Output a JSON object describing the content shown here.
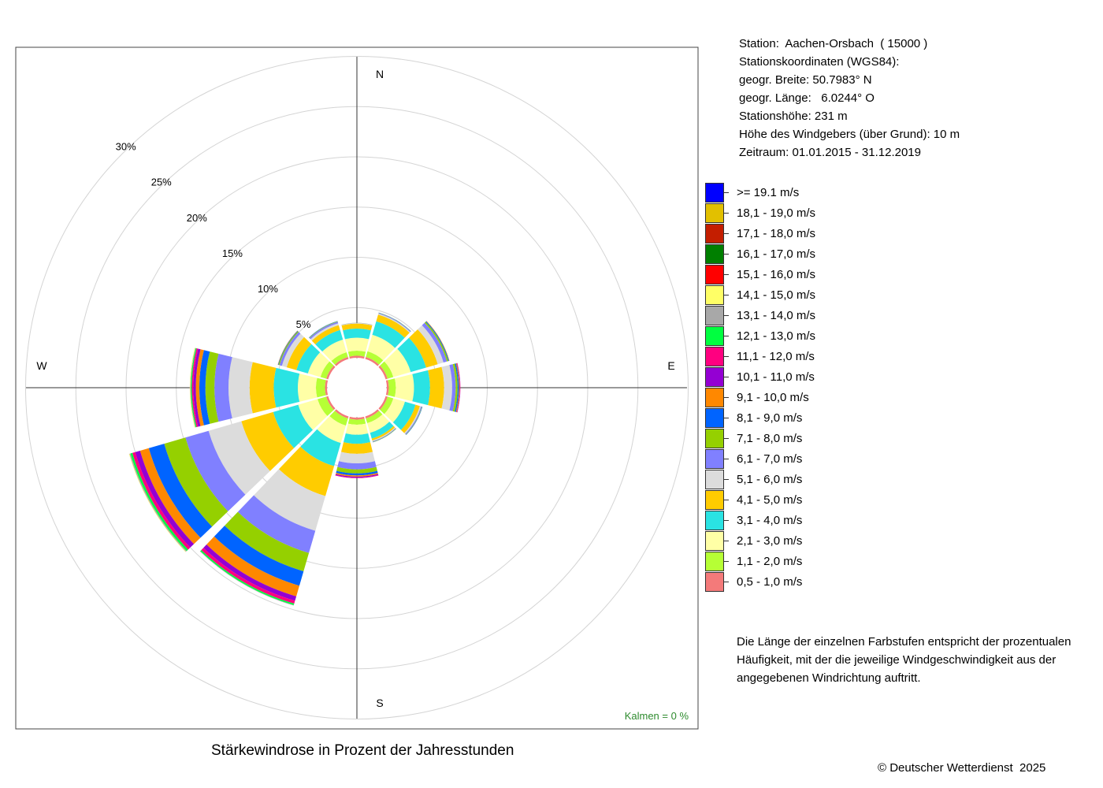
{
  "info": {
    "station": "Station:  Aachen-Orsbach  ( 15000 )",
    "coords_title": "Stationskoordinaten (WGS84):",
    "lat": "geogr. Breite: 50.7983° N",
    "lon": "geogr. Länge:   6.0244° O",
    "height": "Stationshöhe: 231 m",
    "sensor": "Höhe des Windgebers (über Grund): 10 m",
    "period": "Zeitraum: 01.01.2015 - 31.12.2019"
  },
  "calm": "Kalmen  =  0 %",
  "caption": "Stärkewindrose in Prozent der Jahresstunden",
  "note": [
    "Die Länge der einzelnen Farbstufen entspricht der prozentualen",
    "Häufigkeit, mit der die jeweilige Windgeschwindigkeit aus der",
    "angegebenen Windrichtung auftritt."
  ],
  "copyright": "© Deutscher Wetterdienst  2025",
  "chart_data": {
    "type": "wind-rose",
    "title": "Stärkewindrose in Prozent der Jahresstunden",
    "radial_unit": "%",
    "radial_ticks": [
      5,
      10,
      15,
      20,
      25,
      30
    ],
    "radial_tick_labels": [
      "5%",
      "10%",
      "15%",
      "20%",
      "25%",
      "30%"
    ],
    "rmax": 30,
    "compass_labels": [
      "N",
      "E",
      "S",
      "W"
    ],
    "calm_percent": 0,
    "directions_deg": [
      0,
      30,
      60,
      90,
      120,
      150,
      180,
      210,
      240,
      270,
      300,
      330
    ],
    "speed_classes": [
      {
        "label": "0,5 - 1,0 m/s",
        "color": "#f47a7a"
      },
      {
        "label": "1,1 - 2,0 m/s",
        "color": "#b6ff35"
      },
      {
        "label": "2,1 - 3,0 m/s",
        "color": "#ffffa6"
      },
      {
        "label": "3,1 - 4,0 m/s",
        "color": "#2ae3e3"
      },
      {
        "label": "4,1 - 5,0 m/s",
        "color": "#ffcc00"
      },
      {
        "label": "5,1 - 6,0 m/s",
        "color": "#dcdcdc"
      },
      {
        "label": "6,1 - 7,0 m/s",
        "color": "#8080ff"
      },
      {
        "label": "7,1 - 8,0 m/s",
        "color": "#95d000"
      },
      {
        "label": "8,1 - 9,0 m/s",
        "color": "#0064ff"
      },
      {
        "label": "9,1 - 10,0 m/s",
        "color": "#ff8800"
      },
      {
        "label": "10,1 - 11,0 m/s",
        "color": "#9400d3"
      },
      {
        "label": "11,1 - 12,0 m/s",
        "color": "#ff0080"
      },
      {
        "label": "12,1 - 13,0 m/s",
        "color": "#00ff40"
      },
      {
        "label": "13,1 - 14,0 m/s",
        "color": "#a8a8a8"
      },
      {
        "label": "14,1 - 15,0 m/s",
        "color": "#ffff66"
      },
      {
        "label": "15,1 - 16,0 m/s",
        "color": "#ff0000"
      },
      {
        "label": "16,1 - 17,0 m/s",
        "color": "#007f00"
      },
      {
        "label": "17,1 - 18,0 m/s",
        "color": "#c41e00"
      },
      {
        "label": "18,1 - 19,0 m/s",
        "color": "#e2c000"
      },
      {
        "label": ">= 19.1 m/s",
        "color": "#0000ff"
      }
    ],
    "series": [
      {
        "dir": 0,
        "values": [
          0.2,
          0.5,
          1.3,
          0.9,
          0.5,
          0.05,
          0.02,
          0.01
        ]
      },
      {
        "dir": 30,
        "values": [
          0.2,
          0.6,
          1.7,
          1.4,
          0.7,
          0.1,
          0.06,
          0.03,
          0.02
        ]
      },
      {
        "dir": 60,
        "values": [
          0.2,
          0.6,
          1.8,
          1.6,
          1.2,
          0.6,
          0.35,
          0.15,
          0.08,
          0.04
        ]
      },
      {
        "dir": 90,
        "values": [
          0.2,
          0.7,
          1.8,
          1.6,
          1.4,
          0.8,
          0.35,
          0.2,
          0.12,
          0.08,
          0.05,
          0.02
        ]
      },
      {
        "dir": 120,
        "values": [
          0.2,
          0.6,
          1.2,
          1.1,
          0.45,
          0.12,
          0.08,
          0.04,
          0.03
        ]
      },
      {
        "dir": 150,
        "values": [
          0.2,
          0.5,
          1.0,
          0.6,
          0.2,
          0.08,
          0.05,
          0.04,
          0.02
        ]
      },
      {
        "dir": 180,
        "values": [
          0.2,
          0.5,
          1.0,
          0.9,
          1.0,
          0.95,
          0.6,
          0.4,
          0.2,
          0.12,
          0.1,
          0.05
        ]
      },
      {
        "dir": 210,
        "values": [
          0.2,
          0.75,
          1.8,
          2.4,
          3.1,
          3.6,
          2.3,
          1.9,
          1.5,
          1.1,
          0.45,
          0.3,
          0.15,
          0.05
        ]
      },
      {
        "dir": 240,
        "values": [
          0.2,
          0.9,
          2.0,
          2.6,
          3.3,
          3.4,
          2.4,
          2.2,
          1.6,
          0.9,
          0.5,
          0.3,
          0.2,
          0.1,
          0.05
        ]
      },
      {
        "dir": 270,
        "values": [
          0.2,
          0.9,
          1.8,
          2.4,
          2.4,
          2.1,
          1.4,
          0.9,
          0.6,
          0.35,
          0.25,
          0.15,
          0.1,
          0.05,
          0.05
        ]
      },
      {
        "dir": 300,
        "values": [
          0.2,
          0.6,
          1.3,
          1.2,
          1.0,
          0.5,
          0.25,
          0.1,
          0.05,
          0.03
        ]
      },
      {
        "dir": 330,
        "values": [
          0.2,
          0.5,
          1.3,
          1.0,
          0.5,
          0.2,
          0.15,
          0.05,
          0.03
        ]
      }
    ]
  }
}
